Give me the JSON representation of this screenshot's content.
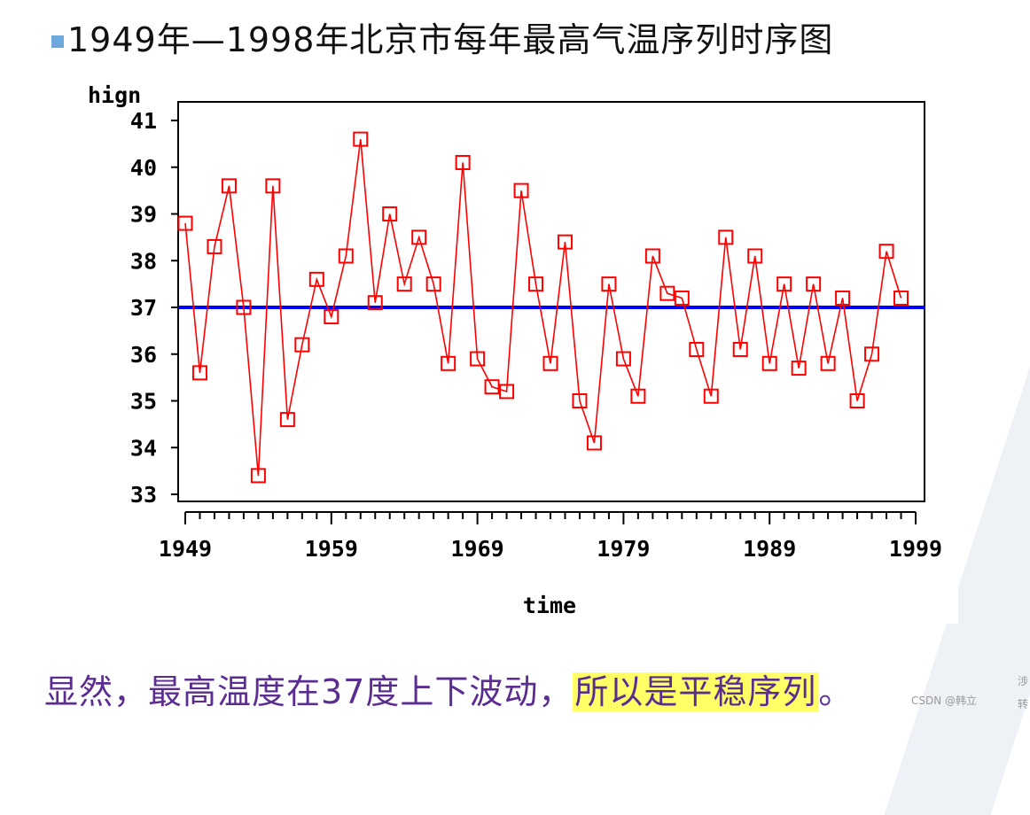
{
  "slide": {
    "title": "1949年—1998年北京市每年最高气温序列时序图",
    "caption_main": "显然，最高温度在37度上下波动，",
    "caption_highlight": "所以是平稳序列",
    "caption_end": "。",
    "watermark": "CSDN @韩立",
    "side_char_1": "涉",
    "side_char_2": "转"
  },
  "colors": {
    "series": "#ff0000",
    "reference_line": "#0000ff",
    "axis": "#000000",
    "caption": "#5b2c91",
    "highlight": "#ffff66"
  },
  "chart_data": {
    "type": "line",
    "title": "",
    "xlabel": "time",
    "ylabel": "hign",
    "xlim": [
      1949,
      1999
    ],
    "ylim": [
      33,
      41
    ],
    "x_ticks": [
      1949,
      1959,
      1969,
      1979,
      1989,
      1999
    ],
    "y_ticks": [
      33,
      34,
      35,
      36,
      37,
      38,
      39,
      40,
      41
    ],
    "reference_line": 37,
    "marker": "square",
    "series": [
      {
        "name": "hign",
        "x": [
          1949,
          1950,
          1951,
          1952,
          1953,
          1954,
          1955,
          1956,
          1957,
          1958,
          1959,
          1960,
          1961,
          1962,
          1963,
          1964,
          1965,
          1966,
          1967,
          1968,
          1969,
          1970,
          1971,
          1972,
          1973,
          1974,
          1975,
          1976,
          1977,
          1978,
          1979,
          1980,
          1981,
          1982,
          1983,
          1984,
          1985,
          1986,
          1987,
          1988,
          1989,
          1990,
          1991,
          1992,
          1993,
          1994,
          1995,
          1996,
          1997,
          1998
        ],
        "values": [
          38.8,
          35.6,
          38.3,
          39.6,
          37.0,
          33.4,
          39.6,
          34.6,
          36.2,
          37.6,
          36.8,
          38.1,
          40.6,
          37.1,
          39.0,
          37.5,
          38.5,
          37.5,
          35.8,
          40.1,
          35.9,
          35.3,
          35.2,
          39.5,
          37.5,
          35.8,
          38.4,
          35.0,
          34.1,
          37.5,
          35.9,
          35.1,
          38.1,
          37.3,
          37.2,
          36.1,
          35.1,
          38.5,
          36.1,
          38.1,
          35.8,
          37.5,
          35.7,
          37.5,
          35.8,
          37.2,
          35.0,
          36.0,
          38.2,
          37.2
        ]
      }
    ]
  }
}
